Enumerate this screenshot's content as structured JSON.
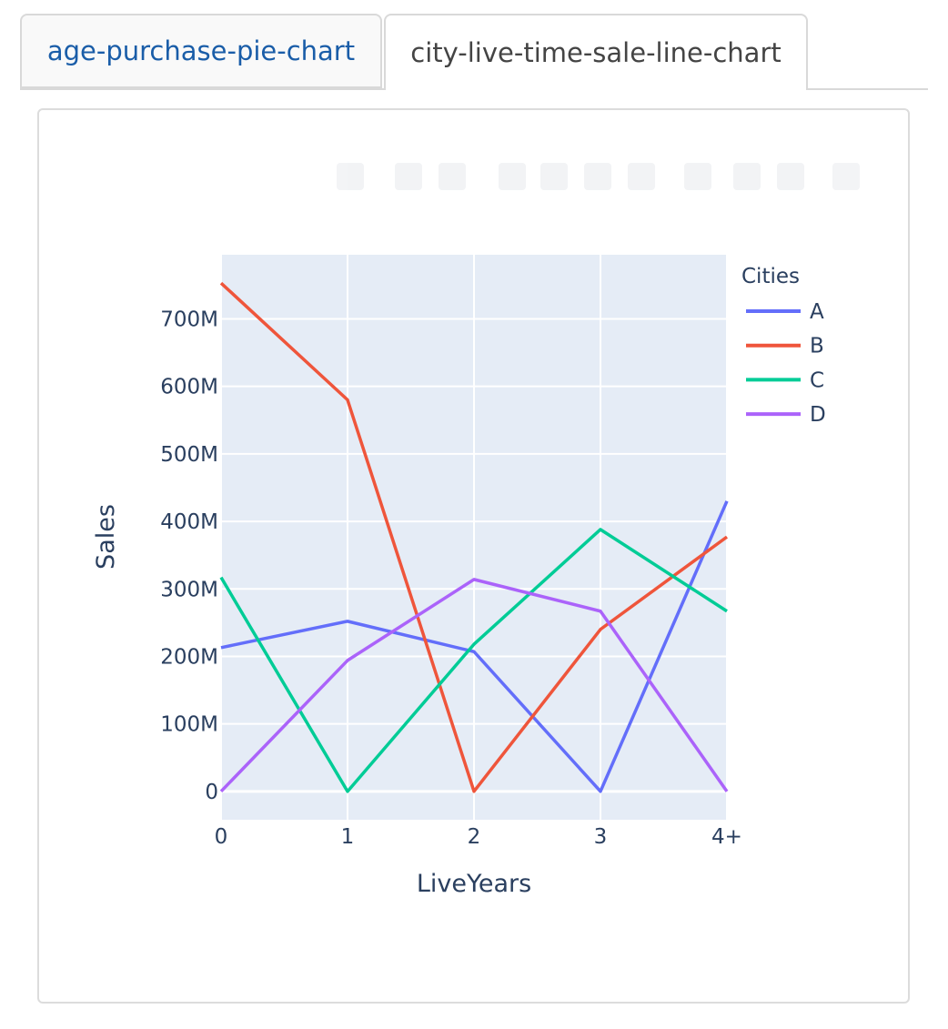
{
  "tabs": [
    {
      "label": "age-purchase-pie-chart",
      "active": false
    },
    {
      "label": "city-live-time-sale-line-chart",
      "active": true
    }
  ],
  "chart_data": {
    "type": "line",
    "title": "",
    "xlabel": "LiveYears",
    "ylabel": "Sales",
    "categories": [
      "0",
      "1",
      "2",
      "3",
      "4+"
    ],
    "y_ticks": [
      0,
      100000000,
      200000000,
      300000000,
      400000000,
      500000000,
      600000000,
      700000000
    ],
    "y_tick_labels": [
      "0",
      "100M",
      "200M",
      "300M",
      "400M",
      "500M",
      "600M",
      "700M"
    ],
    "ylim": [
      -42000000,
      795000000
    ],
    "grid": true,
    "legend_title": "Cities",
    "legend_position": "top-right",
    "series": [
      {
        "name": "A",
        "color": "#636efa",
        "values": [
          213000000,
          252000000,
          207000000,
          0,
          430000000
        ]
      },
      {
        "name": "B",
        "color": "#ef553b",
        "values": [
          753000000,
          580000000,
          0,
          240000000,
          377000000
        ]
      },
      {
        "name": "C",
        "color": "#00cc96",
        "values": [
          317000000,
          0,
          218000000,
          388000000,
          267000000
        ]
      },
      {
        "name": "D",
        "color": "#ab63fa",
        "values": [
          0,
          194000000,
          314000000,
          267000000,
          0
        ]
      }
    ]
  }
}
